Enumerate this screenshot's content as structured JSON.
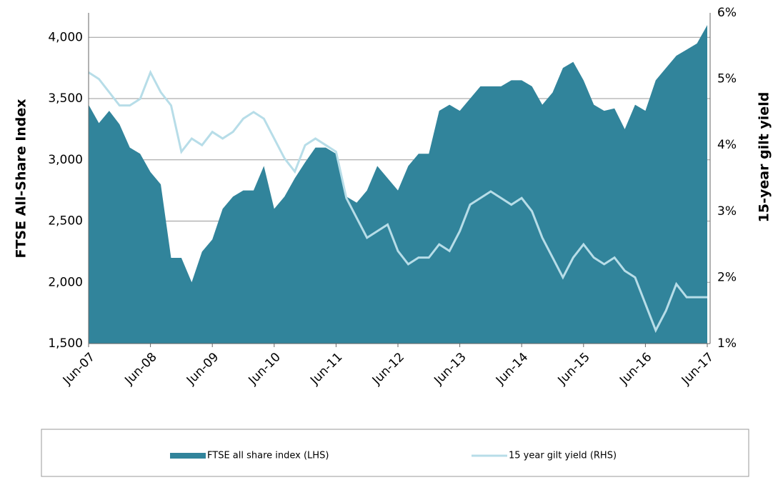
{
  "chart_data": {
    "type": "area",
    "x": [
      "Jun-07",
      "Aug-07",
      "Oct-07",
      "Dec-07",
      "Feb-08",
      "Apr-08",
      "Jun-08",
      "Aug-08",
      "Oct-08",
      "Dec-08",
      "Feb-09",
      "Apr-09",
      "Jun-09",
      "Aug-09",
      "Oct-09",
      "Dec-09",
      "Feb-10",
      "Apr-10",
      "Jun-10",
      "Aug-10",
      "Oct-10",
      "Dec-10",
      "Feb-11",
      "Apr-11",
      "Jun-11",
      "Aug-11",
      "Oct-11",
      "Dec-11",
      "Feb-12",
      "Apr-12",
      "Jun-12",
      "Aug-12",
      "Oct-12",
      "Dec-12",
      "Feb-13",
      "Apr-13",
      "Jun-13",
      "Aug-13",
      "Oct-13",
      "Dec-13",
      "Feb-14",
      "Apr-14",
      "Jun-14",
      "Aug-14",
      "Oct-14",
      "Dec-14",
      "Feb-15",
      "Apr-15",
      "Jun-15",
      "Aug-15",
      "Oct-15",
      "Dec-15",
      "Feb-16",
      "Apr-16",
      "Jun-16",
      "Aug-16",
      "Oct-16",
      "Dec-16",
      "Feb-17",
      "Apr-17",
      "Jun-17"
    ],
    "series": [
      {
        "name": "FTSE all share index (LHS)",
        "type": "area",
        "color": "#31849b",
        "values": [
          3450,
          3300,
          3400,
          3290,
          3100,
          3050,
          2900,
          2800,
          2200,
          2200,
          2000,
          2250,
          2350,
          2600,
          2700,
          2750,
          2750,
          2950,
          2600,
          2700,
          2850,
          2980,
          3100,
          3100,
          3050,
          2700,
          2650,
          2750,
          2950,
          2850,
          2750,
          2950,
          3050,
          3050,
          3400,
          3450,
          3400,
          3500,
          3600,
          3600,
          3600,
          3650,
          3650,
          3600,
          3450,
          3550,
          3750,
          3800,
          3650,
          3450,
          3400,
          3420,
          3250,
          3450,
          3400,
          3650,
          3750,
          3850,
          3900,
          3950,
          4100
        ]
      },
      {
        "name": "15 year gilt yield (RHS)",
        "type": "line",
        "axis": "y2",
        "color": "#b7dde8",
        "values": [
          5.1,
          5.0,
          4.8,
          4.6,
          4.6,
          4.7,
          5.1,
          4.8,
          4.6,
          3.9,
          4.1,
          4.0,
          4.2,
          4.1,
          4.2,
          4.4,
          4.5,
          4.4,
          4.1,
          3.8,
          3.6,
          4.0,
          4.1,
          4.0,
          3.9,
          3.2,
          2.9,
          2.6,
          2.7,
          2.8,
          2.4,
          2.2,
          2.3,
          2.3,
          2.5,
          2.4,
          2.7,
          3.1,
          3.2,
          3.3,
          3.2,
          3.1,
          3.2,
          3.0,
          2.6,
          2.3,
          2.0,
          2.3,
          2.5,
          2.3,
          2.2,
          2.3,
          2.1,
          2.0,
          1.6,
          1.2,
          1.5,
          1.9,
          1.7,
          1.7,
          1.7
        ]
      }
    ],
    "xticks": [
      "Jun-07",
      "Jun-08",
      "Jun-09",
      "Jun-10",
      "Jun-11",
      "Jun-12",
      "Jun-13",
      "Jun-14",
      "Jun-15",
      "Jun-16",
      "Jun-17"
    ],
    "ylabel": "FTSE All-Share Index",
    "y2label": "15-year gilt yield",
    "ylim": [
      1500,
      4200
    ],
    "yticks": [
      {
        "value": 1500,
        "label": "1,500"
      },
      {
        "value": 2000,
        "label": "2,000"
      },
      {
        "value": 2500,
        "label": "2,500"
      },
      {
        "value": 3000,
        "label": "3,000"
      },
      {
        "value": 3500,
        "label": "3,500"
      },
      {
        "value": 4000,
        "label": "4,000"
      }
    ],
    "y2lim": [
      1,
      6
    ],
    "y2ticks": [
      {
        "value": 1,
        "label": "1%"
      },
      {
        "value": 2,
        "label": "2%"
      },
      {
        "value": 3,
        "label": "3%"
      },
      {
        "value": 4,
        "label": "4%"
      },
      {
        "value": 5,
        "label": "5%"
      },
      {
        "value": 6,
        "label": "6%"
      }
    ],
    "grid": true,
    "legend": "bottom"
  }
}
